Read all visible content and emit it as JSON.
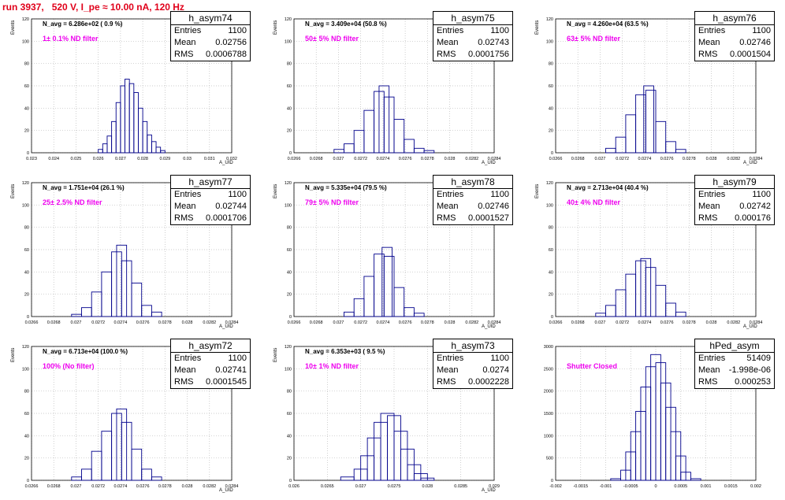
{
  "header": "run 3937,   520 V, I_pe ≈ 10.00 nA, 120 Hz",
  "colors": {
    "hist": "#00008b",
    "grid": "#bbbbbb",
    "filter_text": "#ee00ee",
    "header_text": "#e0001a"
  },
  "chart_data": [
    {
      "type": "histogram",
      "title": "h_asym74",
      "navg": "N_avg = 6.286e+02 ( 0.9 %)",
      "filter": "1± 0.1% ND filter",
      "ylabel": "Events",
      "xlabel": "A_UID",
      "stats": {
        "labels": [
          "Entries",
          "Mean",
          "RMS"
        ],
        "values": [
          "1100",
          "0.02756",
          "0.0006788"
        ]
      },
      "xlim": [
        0.023,
        0.032
      ],
      "ylim": [
        0,
        120
      ],
      "xticks": [
        "0.023",
        "0.024",
        "0.025",
        "0.026",
        "0.027",
        "0.028",
        "0.029",
        "0.03",
        "0.031",
        "0.032"
      ],
      "yticks": [
        "0",
        "20",
        "40",
        "60",
        "80",
        "100",
        "120"
      ],
      "bins": [
        [
          0.0261,
          3
        ],
        [
          0.0263,
          8
        ],
        [
          0.0265,
          15
        ],
        [
          0.0267,
          28
        ],
        [
          0.0269,
          45
        ],
        [
          0.0271,
          60
        ],
        [
          0.0273,
          66
        ],
        [
          0.0275,
          62
        ],
        [
          0.0277,
          54
        ],
        [
          0.0279,
          40
        ],
        [
          0.0281,
          28
        ],
        [
          0.0283,
          16
        ],
        [
          0.0285,
          10
        ],
        [
          0.0287,
          5
        ],
        [
          0.0289,
          2
        ]
      ]
    },
    {
      "type": "histogram",
      "title": "h_asym75",
      "navg": "N_avg = 3.409e+04 (50.8 %)",
      "filter": "50± 5% ND filter",
      "ylabel": "Events",
      "xlabel": "A_UID",
      "stats": {
        "labels": [
          "Entries",
          "Mean",
          "RMS"
        ],
        "values": [
          "1100",
          "0.02743",
          "0.0001756"
        ]
      },
      "xlim": [
        0.02655,
        0.02855
      ],
      "ylim": [
        0,
        120
      ],
      "xticks": [
        "0.0266",
        "0.0268",
        "0.027",
        "0.0272",
        "0.0274",
        "0.0276",
        "0.0278",
        "0.028",
        "0.0282",
        "0.0284"
      ],
      "yticks": [
        "0",
        "20",
        "40",
        "60",
        "80",
        "100",
        "120"
      ],
      "bins": [
        [
          0.027,
          3
        ],
        [
          0.0271,
          8
        ],
        [
          0.0272,
          20
        ],
        [
          0.0273,
          38
        ],
        [
          0.0274,
          55
        ],
        [
          0.02745,
          60
        ],
        [
          0.0275,
          50
        ],
        [
          0.0276,
          30
        ],
        [
          0.0277,
          12
        ],
        [
          0.0278,
          4
        ],
        [
          0.0279,
          2
        ]
      ]
    },
    {
      "type": "histogram",
      "title": "h_asym76",
      "navg": "N_avg = 4.260e+04 (63.5 %)",
      "filter": "63± 5% ND filter",
      "ylabel": "Events",
      "xlabel": "A_UID",
      "stats": {
        "labels": [
          "Entries",
          "Mean",
          "RMS"
        ],
        "values": [
          "1100",
          "0.02746",
          "0.0001504"
        ]
      },
      "xlim": [
        0.02655,
        0.02855
      ],
      "ylim": [
        0,
        120
      ],
      "xticks": [
        "0.0266",
        "0.0268",
        "0.027",
        "0.0272",
        "0.0274",
        "0.0276",
        "0.0278",
        "0.028",
        "0.0282",
        "0.0284"
      ],
      "yticks": [
        "0",
        "20",
        "40",
        "60",
        "80",
        "100",
        "120"
      ],
      "bins": [
        [
          0.0271,
          4
        ],
        [
          0.0272,
          14
        ],
        [
          0.0273,
          34
        ],
        [
          0.0274,
          52
        ],
        [
          0.02748,
          60
        ],
        [
          0.0275,
          56
        ],
        [
          0.0276,
          28
        ],
        [
          0.0277,
          10
        ],
        [
          0.0278,
          3
        ]
      ]
    },
    {
      "type": "histogram",
      "title": "h_asym77",
      "navg": "N_avg = 1.751e+04 (26.1 %)",
      "filter": "25± 2.5% ND filter",
      "ylabel": "Events",
      "xlabel": "A_UID",
      "stats": {
        "labels": [
          "Entries",
          "Mean",
          "RMS"
        ],
        "values": [
          "1100",
          "0.02744",
          "0.0001706"
        ]
      },
      "xlim": [
        0.02655,
        0.02855
      ],
      "ylim": [
        0,
        120
      ],
      "xticks": [
        "0.0266",
        "0.0268",
        "0.027",
        "0.0272",
        "0.0274",
        "0.0276",
        "0.0278",
        "0.028",
        "0.0282",
        "0.0284"
      ],
      "yticks": [
        "0",
        "20",
        "40",
        "60",
        "80",
        "100",
        "120"
      ],
      "bins": [
        [
          0.027,
          2
        ],
        [
          0.0271,
          8
        ],
        [
          0.0272,
          22
        ],
        [
          0.0273,
          40
        ],
        [
          0.0274,
          58
        ],
        [
          0.02745,
          64
        ],
        [
          0.0275,
          50
        ],
        [
          0.0276,
          30
        ],
        [
          0.0277,
          10
        ],
        [
          0.0278,
          4
        ]
      ]
    },
    {
      "type": "histogram",
      "title": "h_asym78",
      "navg": "N_avg = 5.335e+04 (79.5 %)",
      "filter": "79± 5% ND filter",
      "ylabel": "Events",
      "xlabel": "A_UID",
      "stats": {
        "labels": [
          "Entries",
          "Mean",
          "RMS"
        ],
        "values": [
          "1100",
          "0.02746",
          "0.0001527"
        ]
      },
      "xlim": [
        0.02655,
        0.02855
      ],
      "ylim": [
        0,
        120
      ],
      "xticks": [
        "0.0266",
        "0.0268",
        "0.027",
        "0.0272",
        "0.0274",
        "0.0276",
        "0.0278",
        "0.028",
        "0.0282",
        "0.0284"
      ],
      "yticks": [
        "0",
        "20",
        "40",
        "60",
        "80",
        "100",
        "120"
      ],
      "bins": [
        [
          0.0271,
          4
        ],
        [
          0.0272,
          16
        ],
        [
          0.0273,
          36
        ],
        [
          0.0274,
          56
        ],
        [
          0.02748,
          62
        ],
        [
          0.0275,
          54
        ],
        [
          0.0276,
          26
        ],
        [
          0.0277,
          8
        ],
        [
          0.0278,
          3
        ]
      ]
    },
    {
      "type": "histogram",
      "title": "h_asym79",
      "navg": "N_avg = 2.713e+04 (40.4 %)",
      "filter": "40± 4% ND filter",
      "ylabel": "Events",
      "xlabel": "A_UID",
      "stats": {
        "labels": [
          "Entries",
          "Mean",
          "RMS"
        ],
        "values": [
          "1100",
          "0.02742",
          "0.000176"
        ]
      },
      "xlim": [
        0.02655,
        0.02855
      ],
      "ylim": [
        0,
        120
      ],
      "xticks": [
        "0.0266",
        "0.0268",
        "0.027",
        "0.0272",
        "0.0274",
        "0.0276",
        "0.0278",
        "0.028",
        "0.0282",
        "0.0284"
      ],
      "yticks": [
        "0",
        "20",
        "40",
        "60",
        "80",
        "100",
        "120"
      ],
      "bins": [
        [
          0.027,
          3
        ],
        [
          0.0271,
          10
        ],
        [
          0.0272,
          24
        ],
        [
          0.0273,
          38
        ],
        [
          0.0274,
          50
        ],
        [
          0.02745,
          52
        ],
        [
          0.0275,
          44
        ],
        [
          0.0276,
          28
        ],
        [
          0.0277,
          12
        ],
        [
          0.0278,
          4
        ]
      ]
    },
    {
      "type": "histogram",
      "title": "h_asym72",
      "navg": "N_avg = 6.713e+04 (100.0 %)",
      "filter": "100% (No filter)",
      "ylabel": "Events",
      "xlabel": "A_UID",
      "stats": {
        "labels": [
          "Entries",
          "Mean",
          "RMS"
        ],
        "values": [
          "1100",
          "0.02741",
          "0.0001545"
        ]
      },
      "xlim": [
        0.02655,
        0.02855
      ],
      "ylim": [
        0,
        120
      ],
      "xticks": [
        "0.0266",
        "0.0268",
        "0.027",
        "0.0272",
        "0.0274",
        "0.0276",
        "0.0278",
        "0.028",
        "0.0282",
        "0.0284"
      ],
      "yticks": [
        "0",
        "20",
        "40",
        "60",
        "80",
        "100",
        "120"
      ],
      "bins": [
        [
          0.027,
          3
        ],
        [
          0.0271,
          10
        ],
        [
          0.0272,
          26
        ],
        [
          0.0273,
          44
        ],
        [
          0.0274,
          60
        ],
        [
          0.02745,
          64
        ],
        [
          0.0275,
          52
        ],
        [
          0.0276,
          28
        ],
        [
          0.0277,
          10
        ],
        [
          0.0278,
          3
        ]
      ]
    },
    {
      "type": "histogram",
      "title": "h_asym73",
      "navg": "N_avg = 6.353e+03 ( 9.5 %)",
      "filter": "10± 1% ND filter",
      "ylabel": "Events",
      "xlabel": "A_UID",
      "stats": {
        "labels": [
          "Entries",
          "Mean",
          "RMS"
        ],
        "values": [
          "1100",
          "0.0274",
          "0.0002228"
        ]
      },
      "xlim": [
        0.026,
        0.029
      ],
      "ylim": [
        0,
        120
      ],
      "xticks": [
        "0.026",
        "0.0265",
        "0.027",
        "0.0275",
        "0.028",
        "0.0285",
        "0.029"
      ],
      "yticks": [
        "0",
        "20",
        "40",
        "60",
        "80",
        "100",
        "120"
      ],
      "bins": [
        [
          0.0268,
          3
        ],
        [
          0.027,
          10
        ],
        [
          0.0271,
          22
        ],
        [
          0.0272,
          38
        ],
        [
          0.0273,
          52
        ],
        [
          0.0274,
          60
        ],
        [
          0.0275,
          58
        ],
        [
          0.0276,
          44
        ],
        [
          0.0277,
          28
        ],
        [
          0.0278,
          14
        ],
        [
          0.0279,
          6
        ],
        [
          0.028,
          2
        ]
      ]
    },
    {
      "type": "histogram",
      "title": "hPed_asym",
      "navg": "",
      "filter": "Shutter Closed",
      "ylabel": "",
      "xlabel": "",
      "stats": {
        "labels": [
          "Entries",
          "Mean",
          "RMS"
        ],
        "values": [
          "51409",
          "-1.998e-06",
          "0.000253"
        ]
      },
      "xlim": [
        -0.002,
        0.002
      ],
      "ylim": [
        0,
        3300
      ],
      "xticks": [
        "-0.002",
        "-0.0015",
        "-0.001",
        "-0.0005",
        "0",
        "0.0005",
        "0.001",
        "0.0015",
        "0.002"
      ],
      "yticks": [
        "0",
        "500",
        "1000",
        "1500",
        "2000",
        "2500",
        "3000"
      ],
      "bins": [
        [
          -0.0008,
          40
        ],
        [
          -0.0006,
          250
        ],
        [
          -0.0005,
          700
        ],
        [
          -0.0004,
          1200
        ],
        [
          -0.0003,
          1700
        ],
        [
          -0.0002,
          2300
        ],
        [
          -0.0001,
          2800
        ],
        [
          0,
          3100
        ],
        [
          0.0001,
          2900
        ],
        [
          0.0002,
          2400
        ],
        [
          0.0003,
          1800
        ],
        [
          0.0004,
          1200
        ],
        [
          0.0005,
          600
        ],
        [
          0.0006,
          200
        ],
        [
          0.0008,
          40
        ]
      ]
    }
  ]
}
